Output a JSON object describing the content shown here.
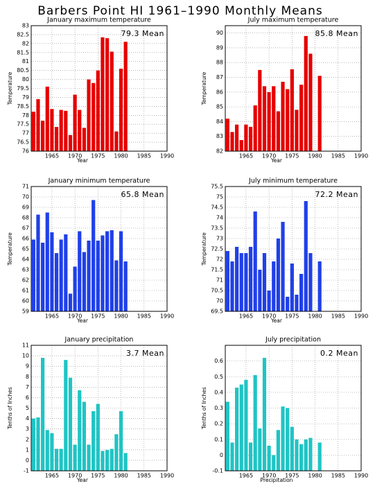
{
  "title": "Barbers Point HI  1961–1990 Monthly Means",
  "chart_data": [
    {
      "type": "bar",
      "title": "January maximum temperature",
      "annotation": "79.3 Mean",
      "x_label": "Year",
      "y_label": "Temperature",
      "color": "#e60000",
      "grid": true,
      "x": [
        1961,
        1962,
        1963,
        1964,
        1965,
        1966,
        1967,
        1968,
        1969,
        1970,
        1971,
        1972,
        1973,
        1974,
        1975,
        1976,
        1977,
        1978,
        1979,
        1980,
        1981
      ],
      "values": [
        78.2,
        78.9,
        77.7,
        79.6,
        78.35,
        77.35,
        78.3,
        78.25,
        76.9,
        79.15,
        78.3,
        77.3,
        80.0,
        79.8,
        80.5,
        82.35,
        82.3,
        81.55,
        77.1,
        80.6,
        82.1
      ],
      "xlim": [
        1960.5,
        1990
      ],
      "xticks": [
        1965,
        1970,
        1975,
        1980,
        1985,
        1990
      ],
      "ylim": [
        76,
        83
      ],
      "yticks": [
        76,
        76.5,
        77,
        77.5,
        78,
        78.5,
        79,
        79.5,
        80,
        80.5,
        81,
        81.5,
        82,
        82.5,
        83
      ]
    },
    {
      "type": "bar",
      "title": "July maximum temperature",
      "annotation": "85.8 Mean",
      "x_label": "Year",
      "y_label": "Temperature",
      "color": "#e60000",
      "grid": true,
      "x": [
        1961,
        1962,
        1963,
        1964,
        1965,
        1966,
        1967,
        1968,
        1969,
        1970,
        1971,
        1972,
        1973,
        1974,
        1975,
        1976,
        1977,
        1978,
        1979,
        1980,
        1981
      ],
      "values": [
        84.2,
        83.3,
        83.8,
        82.75,
        83.8,
        83.65,
        85.1,
        87.5,
        86.4,
        86.0,
        86.4,
        84.7,
        86.7,
        86.2,
        87.55,
        84.8,
        86.5,
        89.8,
        88.6,
        null,
        87.1
      ],
      "xlim": [
        1960.5,
        1990
      ],
      "xticks": [
        1965,
        1970,
        1975,
        1980,
        1985,
        1990
      ],
      "ylim": [
        82,
        90.5
      ],
      "yticks": [
        82,
        83,
        84,
        85,
        86,
        87,
        88,
        89,
        90
      ]
    },
    {
      "type": "bar",
      "title": "January minimum temperature",
      "annotation": "65.8 Mean",
      "x_label": "Year",
      "y_label": "Temperature",
      "color": "#2040e8",
      "grid": true,
      "x": [
        1961,
        1962,
        1963,
        1964,
        1965,
        1966,
        1967,
        1968,
        1969,
        1970,
        1971,
        1972,
        1973,
        1974,
        1975,
        1976,
        1977,
        1978,
        1979,
        1980,
        1981
      ],
      "values": [
        65.9,
        68.3,
        65.6,
        68.5,
        66.6,
        64.6,
        65.9,
        66.4,
        60.7,
        63.3,
        66.7,
        64.7,
        65.8,
        69.7,
        65.8,
        66.3,
        66.7,
        66.8,
        63.9,
        66.7,
        63.8
      ],
      "xlim": [
        1960.5,
        1990
      ],
      "xticks": [
        1965,
        1970,
        1975,
        1980,
        1985,
        1990
      ],
      "ylim": [
        59,
        71
      ],
      "yticks": [
        59,
        60,
        61,
        62,
        63,
        64,
        65,
        66,
        67,
        68,
        69,
        70,
        71
      ]
    },
    {
      "type": "bar",
      "title": "July minimum temperature",
      "annotation": "72.2 Mean",
      "x_label": "Year",
      "y_label": "Temperature",
      "color": "#2040e8",
      "grid": true,
      "x": [
        1961,
        1962,
        1963,
        1964,
        1965,
        1966,
        1967,
        1968,
        1969,
        1970,
        1971,
        1972,
        1973,
        1974,
        1975,
        1976,
        1977,
        1978,
        1979,
        1980,
        1981
      ],
      "values": [
        72.4,
        71.9,
        72.6,
        72.3,
        72.3,
        72.6,
        74.3,
        71.5,
        72.3,
        70.5,
        71.9,
        73.0,
        73.8,
        70.2,
        71.8,
        70.3,
        71.3,
        74.8,
        72.3,
        null,
        71.9
      ],
      "xlim": [
        1960.5,
        1990
      ],
      "xticks": [
        1965,
        1970,
        1975,
        1980,
        1985,
        1990
      ],
      "ylim": [
        69.5,
        75.5
      ],
      "yticks": [
        69.5,
        70,
        70.5,
        71,
        71.5,
        72,
        72.5,
        73,
        73.5,
        74,
        74.5,
        75,
        75.5
      ]
    },
    {
      "type": "bar",
      "title": "January precipitation",
      "annotation": "3.7 Mean",
      "x_label": "Year",
      "y_label": "Tenths of Inches",
      "color": "#20c4c4",
      "grid": true,
      "x": [
        1961,
        1962,
        1963,
        1964,
        1965,
        1966,
        1967,
        1968,
        1969,
        1970,
        1971,
        1972,
        1973,
        1974,
        1975,
        1976,
        1977,
        1978,
        1979,
        1980,
        1981
      ],
      "values": [
        4.0,
        4.1,
        9.8,
        2.9,
        2.6,
        1.1,
        1.1,
        9.6,
        7.9,
        1.5,
        6.7,
        5.6,
        1.5,
        4.7,
        5.4,
        0.9,
        1.0,
        1.1,
        2.5,
        4.7,
        0.7
      ],
      "xlim": [
        1960.5,
        1990
      ],
      "xticks": [
        1965,
        1970,
        1975,
        1980,
        1985,
        1990
      ],
      "ylim": [
        -1,
        11
      ],
      "yticks": [
        -1,
        0,
        1,
        2,
        3,
        4,
        5,
        6,
        7,
        8,
        9,
        10,
        11
      ]
    },
    {
      "type": "bar",
      "title": "July precipitation",
      "annotation": "0.2 Mean",
      "x_label": "Precipitation",
      "y_label": "Tenths of Inches",
      "color": "#20c4c4",
      "grid": true,
      "x": [
        1961,
        1962,
        1963,
        1964,
        1965,
        1966,
        1967,
        1968,
        1969,
        1970,
        1971,
        1972,
        1973,
        1974,
        1975,
        1976,
        1977,
        1978,
        1979,
        1980,
        1981
      ],
      "values": [
        0.34,
        0.08,
        0.43,
        0.45,
        0.48,
        0.08,
        0.51,
        0.17,
        0.62,
        0.06,
        0.0,
        0.16,
        0.31,
        0.3,
        0.18,
        0.1,
        0.07,
        0.1,
        0.11,
        null,
        0.08
      ],
      "xlim": [
        1960.5,
        1990
      ],
      "xticks": [
        1965,
        1970,
        1975,
        1980,
        1985,
        1990
      ],
      "ylim": [
        -0.1,
        0.7
      ],
      "yticks": [
        -0.1,
        0,
        0.1,
        0.2,
        0.3,
        0.4,
        0.5,
        0.6
      ]
    }
  ]
}
